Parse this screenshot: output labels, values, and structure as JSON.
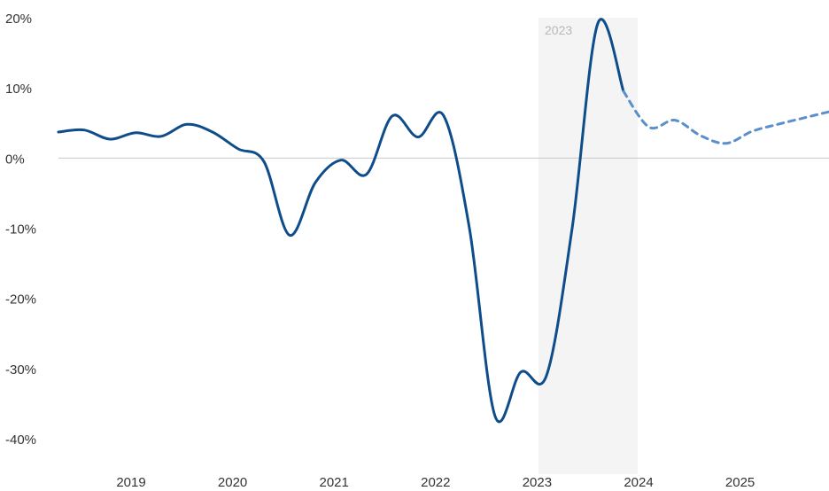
{
  "chart_data": {
    "type": "line",
    "title": "",
    "xlabel": "",
    "ylabel": "",
    "x_ticks": [
      "2019",
      "2020",
      "2021",
      "2022",
      "2023",
      "2024",
      "2025"
    ],
    "y_ticks": [
      "20%",
      "10%",
      "0%",
      "-10%",
      "-20%",
      "-30%",
      "-40%"
    ],
    "ylim": [
      -40,
      20
    ],
    "grid": false,
    "zero_line": true,
    "highlight": {
      "label": "2023",
      "from": "2023-01",
      "to": "2023-12"
    },
    "colors": {
      "line": "#0f4c8a",
      "forecast": "#5b8fcc",
      "band": "#f4f4f4",
      "zero": "#c8c8c8"
    },
    "series": [
      {
        "style": "solid",
        "points": [
          {
            "x": "2018-03",
            "y": 3.7
          },
          {
            "x": "2018-06",
            "y": 4.0
          },
          {
            "x": "2018-09",
            "y": 2.7
          },
          {
            "x": "2018-12",
            "y": 3.6
          },
          {
            "x": "2019-03",
            "y": 3.1
          },
          {
            "x": "2019-06",
            "y": 4.8
          },
          {
            "x": "2019-09",
            "y": 3.7
          },
          {
            "x": "2019-12",
            "y": 1.3
          },
          {
            "x": "2020-03",
            "y": -0.5
          },
          {
            "x": "2020-06",
            "y": -11.0
          },
          {
            "x": "2020-09",
            "y": -3.5
          },
          {
            "x": "2020-12",
            "y": -0.3
          },
          {
            "x": "2021-03",
            "y": -2.3
          },
          {
            "x": "2021-06",
            "y": 6.0
          },
          {
            "x": "2021-09",
            "y": 3.0
          },
          {
            "x": "2021-12",
            "y": 6.0
          },
          {
            "x": "2022-03",
            "y": -10.0
          },
          {
            "x": "2022-06",
            "y": -36.8
          },
          {
            "x": "2022-09",
            "y": -30.5
          },
          {
            "x": "2022-12",
            "y": -31.0
          },
          {
            "x": "2023-03",
            "y": -10.0
          },
          {
            "x": "2023-06",
            "y": 19.2
          },
          {
            "x": "2023-09",
            "y": 9.5
          }
        ]
      },
      {
        "style": "dashed",
        "points": [
          {
            "x": "2023-09",
            "y": 9.5
          },
          {
            "x": "2023-12",
            "y": 4.4
          },
          {
            "x": "2024-03",
            "y": 5.4
          },
          {
            "x": "2024-06",
            "y": 3.2
          },
          {
            "x": "2024-09",
            "y": 2.1
          },
          {
            "x": "2024-12",
            "y": 3.8
          },
          {
            "x": "2025-03",
            "y": 4.8
          },
          {
            "x": "2025-06",
            "y": 5.7
          },
          {
            "x": "2025-09",
            "y": 6.6
          }
        ]
      }
    ]
  }
}
